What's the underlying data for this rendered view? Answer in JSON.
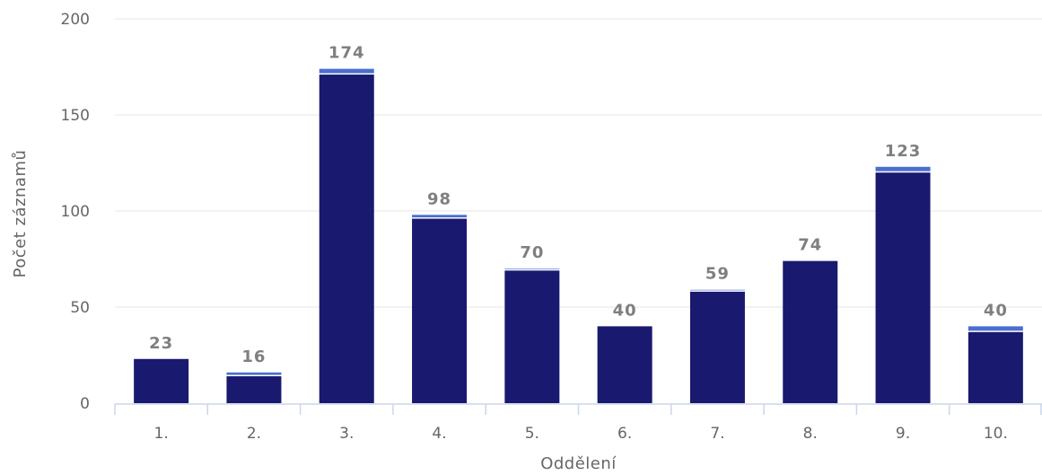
{
  "chart_data": {
    "type": "bar",
    "stacked": true,
    "title": "",
    "xlabel": "Oddělení",
    "ylabel": "Počet záznamů",
    "ylim": [
      0,
      200
    ],
    "yticks": [
      0,
      50,
      100,
      150,
      200
    ],
    "grid": true,
    "legend": "none",
    "categories": [
      "1.",
      "2.",
      "3.",
      "4.",
      "5.",
      "6.",
      "7.",
      "8.",
      "9.",
      "10."
    ],
    "series": [
      {
        "color": "#191970",
        "values": [
          23,
          14,
          171,
          96,
          69,
          40,
          58,
          74,
          120,
          37
        ]
      },
      {
        "color": "#4a6fd0",
        "values": [
          0,
          2,
          3,
          2,
          1,
          0,
          1,
          0,
          3,
          3
        ]
      }
    ],
    "totals": [
      "23",
      "16",
      "174",
      "98",
      "70",
      "40",
      "59",
      "74",
      "123",
      "40"
    ]
  }
}
